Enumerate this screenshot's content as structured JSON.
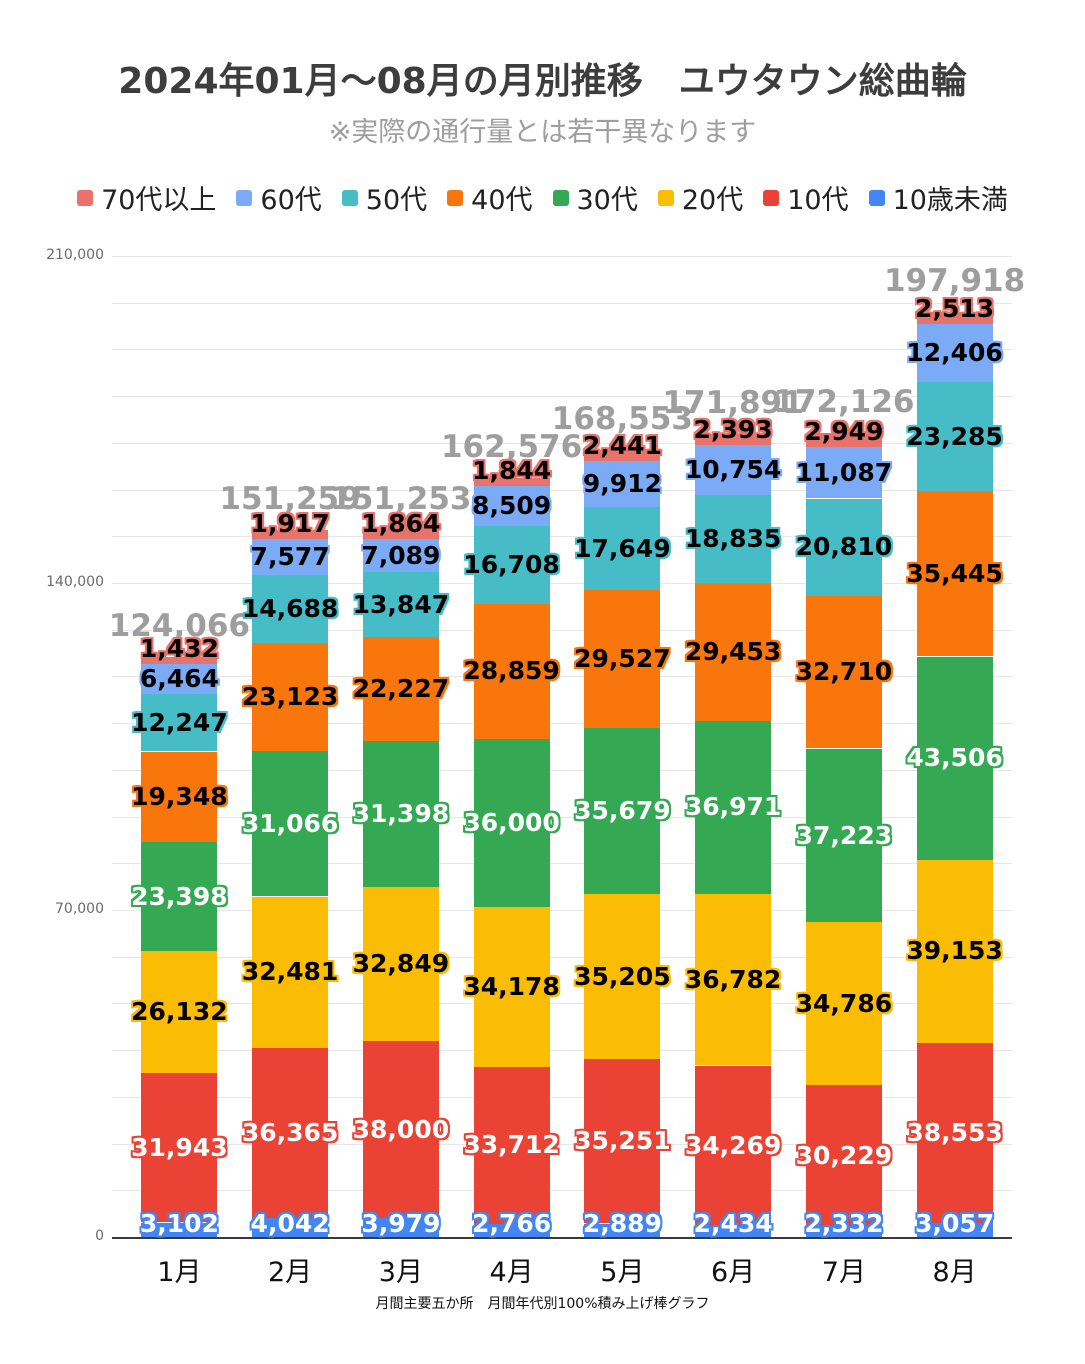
{
  "header": {
    "title": "2024年01月〜08月の月別推移　ユウタウン総曲輪",
    "subtitle": "※実際の通行量とは若干異なります"
  },
  "footer": {
    "caption": "月間主要五か所　月間年代別100%積み上げ棒グラフ"
  },
  "chart_data": {
    "type": "bar",
    "stacked": true,
    "title": "2024年01月〜08月の月別推移　ユウタウン総曲輪",
    "subtitle": "※実際の通行量とは若干異なります",
    "caption": "月間主要五か所　月間年代別100%積み上げ棒グラフ",
    "legend_position": "top",
    "grid": true,
    "categories": [
      "1月",
      "2月",
      "3月",
      "4月",
      "5月",
      "6月",
      "7月",
      "8月"
    ],
    "ylim": [
      0,
      210000
    ],
    "y_major_ticks": [
      0,
      70000,
      140000,
      210000
    ],
    "y_minor_step": 10000,
    "totals": [
      124066,
      151259,
      151253,
      162576,
      168553,
      171891,
      172126,
      197918
    ],
    "totals_color": "#9e9e9e",
    "series": [
      {
        "name": "70代以上",
        "color": "#e8736b",
        "label_color": "#000000",
        "values": [
          1432,
          1917,
          1864,
          1844,
          2441,
          2393,
          2949,
          2513
        ]
      },
      {
        "name": "60代",
        "color": "#7baaf7",
        "label_color": "#000000",
        "values": [
          6464,
          7577,
          7089,
          8509,
          9912,
          10754,
          11087,
          12406
        ]
      },
      {
        "name": "50代",
        "color": "#46bdc6",
        "label_color": "#000000",
        "values": [
          12247,
          14688,
          13847,
          16708,
          17649,
          18835,
          20810,
          23285
        ]
      },
      {
        "name": "40代",
        "color": "#f8760c",
        "label_color": "#000000",
        "values": [
          19348,
          23123,
          22227,
          28859,
          29527,
          29453,
          32710,
          35445
        ]
      },
      {
        "name": "30代",
        "color": "#34a853",
        "label_color": "#ffffff",
        "values": [
          23398,
          31066,
          31398,
          36000,
          35679,
          36971,
          37223,
          43506
        ]
      },
      {
        "name": "20代",
        "color": "#fbbc04",
        "label_color": "#000000",
        "values": [
          26132,
          32481,
          32849,
          34178,
          35205,
          36782,
          34786,
          39153
        ]
      },
      {
        "name": "10代",
        "color": "#ea4335",
        "label_color": "#ffffff",
        "values": [
          31943,
          36365,
          38000,
          33712,
          35251,
          34269,
          30229,
          38553
        ]
      },
      {
        "name": "10歳未満",
        "color": "#4285f4",
        "label_color": "#ffffff",
        "values": [
          3102,
          4042,
          3979,
          2766,
          2889,
          2434,
          2332,
          3057
        ]
      }
    ]
  }
}
